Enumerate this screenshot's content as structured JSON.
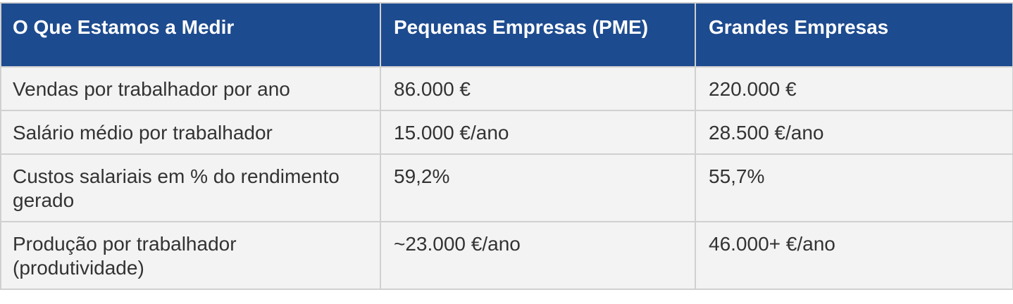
{
  "table": {
    "headers": [
      "O Que Estamos a Medir",
      "Pequenas Empresas (PME)",
      "Grandes Empresas"
    ],
    "rows": [
      [
        "Vendas por trabalhador por ano",
        "86.000 €",
        "220.000 €"
      ],
      [
        "Salário médio por trabalhador",
        "15.000 €/ano",
        "28.500 €/ano"
      ],
      [
        "Custos salariais em % do rendimento gerado",
        "59,2%",
        "55,7%"
      ],
      [
        "Produção por trabalhador (produtividade)",
        "~23.000 €/ano",
        "46.000+ €/ano"
      ]
    ]
  },
  "colors": {
    "header_background": "#1d4b8f",
    "header_text": "#ffffff",
    "cell_background": "#f3f3f3",
    "cell_text": "#333333",
    "border": "#d0d0d0"
  }
}
